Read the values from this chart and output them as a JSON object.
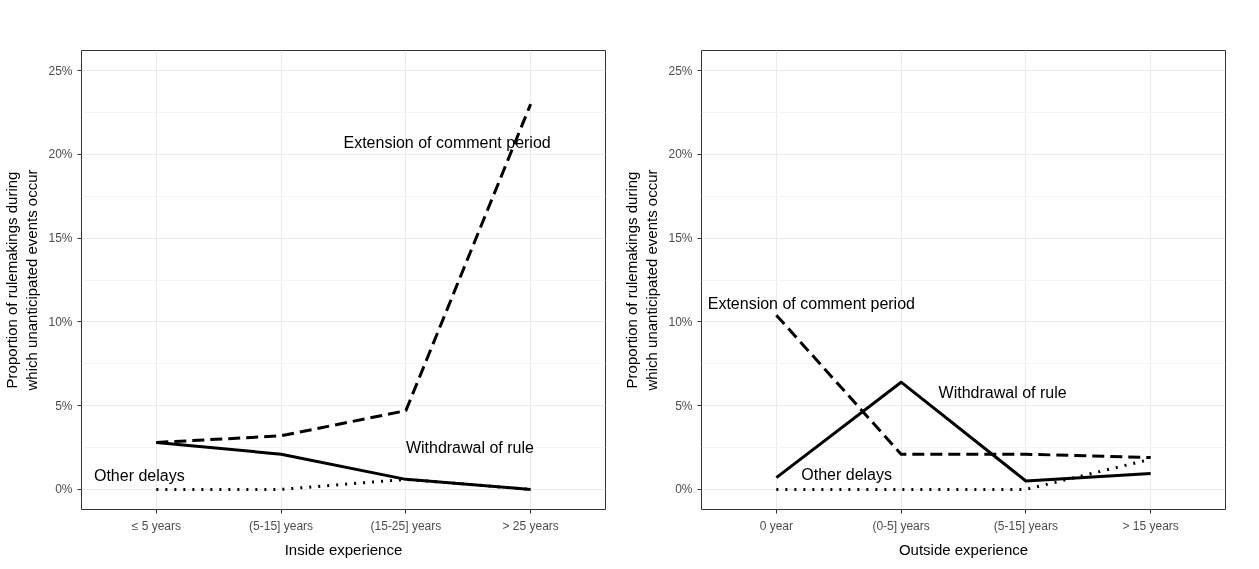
{
  "chart_data": [
    {
      "type": "line",
      "xlabel": "Inside experience",
      "ylabel": "Proportion of rulemakings during\nwhich unanticipated events occur",
      "categories": [
        "≤ 5 years",
        "(5-15] years",
        "(15-25] years",
        "> 25 years"
      ],
      "ylim": [
        -1.2,
        26.2
      ],
      "yticks": [
        {
          "value": 0,
          "label": "0%"
        },
        {
          "value": 5,
          "label": "5%"
        },
        {
          "value": 10,
          "label": "10%"
        },
        {
          "value": 15,
          "label": "15%"
        },
        {
          "value": 20,
          "label": "20%"
        },
        {
          "value": 25,
          "label": "25%"
        }
      ],
      "grid": true,
      "series": [
        {
          "name": "Extension of comment period",
          "color": "#000000",
          "line_style": "dashed",
          "values": [
            2.8,
            3.2,
            4.7,
            23.0
          ]
        },
        {
          "name": "Withdrawal of rule",
          "color": "#000000",
          "line_style": "solid",
          "values": [
            2.8,
            2.1,
            0.6,
            0.0
          ]
        },
        {
          "name": "Other delays",
          "color": "#000000",
          "line_style": "dotted",
          "values": [
            0.0,
            0.0,
            0.6,
            0.0
          ]
        }
      ]
    },
    {
      "type": "line",
      "xlabel": "Outside experience",
      "ylabel": "Proportion of rulemakings during\nwhich unanticipated events occur",
      "categories": [
        "0 year",
        "(0-5] years",
        "(5-15] years",
        "> 15 years"
      ],
      "ylim": [
        -1.2,
        26.2
      ],
      "yticks": [
        {
          "value": 0,
          "label": "0%"
        },
        {
          "value": 5,
          "label": "5%"
        },
        {
          "value": 10,
          "label": "10%"
        },
        {
          "value": 15,
          "label": "15%"
        },
        {
          "value": 20,
          "label": "20%"
        },
        {
          "value": 25,
          "label": "25%"
        }
      ],
      "grid": true,
      "series": [
        {
          "name": "Extension of comment period",
          "color": "#000000",
          "line_style": "dashed",
          "values": [
            10.4,
            2.1,
            2.1,
            1.9
          ]
        },
        {
          "name": "Withdrawal of rule",
          "color": "#000000",
          "line_style": "solid",
          "values": [
            0.7,
            6.4,
            0.5,
            0.95
          ]
        },
        {
          "name": "Other delays",
          "color": "#000000",
          "line_style": "dotted",
          "values": [
            0.0,
            0.0,
            0.0,
            1.8
          ]
        }
      ]
    }
  ]
}
